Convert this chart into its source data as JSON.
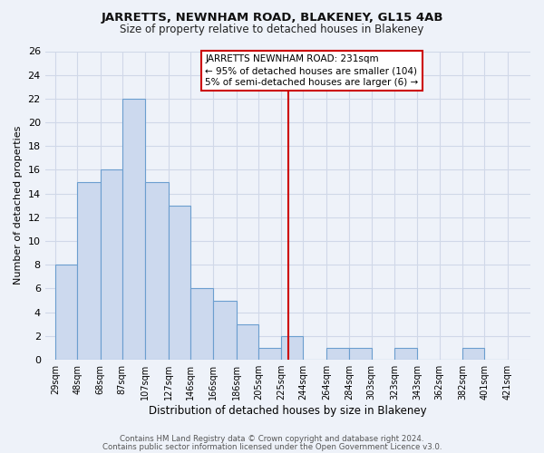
{
  "title": "JARRETTS, NEWNHAM ROAD, BLAKENEY, GL15 4AB",
  "subtitle": "Size of property relative to detached houses in Blakeney",
  "xlabel": "Distribution of detached houses by size in Blakeney",
  "ylabel": "Number of detached properties",
  "bar_left_edges": [
    29,
    48,
    68,
    87,
    107,
    127,
    146,
    166,
    186,
    205,
    225,
    244,
    264,
    284,
    303,
    323,
    343,
    362,
    382,
    401
  ],
  "bar_heights": [
    8,
    15,
    16,
    22,
    15,
    13,
    6,
    5,
    3,
    1,
    2,
    0,
    1,
    1,
    0,
    1,
    0,
    0,
    1,
    0
  ],
  "bar_widths": [
    19,
    20,
    19,
    20,
    20,
    19,
    20,
    20,
    19,
    20,
    19,
    20,
    20,
    19,
    20,
    20,
    19,
    20,
    19,
    20
  ],
  "tick_labels": [
    "29sqm",
    "48sqm",
    "68sqm",
    "87sqm",
    "107sqm",
    "127sqm",
    "146sqm",
    "166sqm",
    "186sqm",
    "205sqm",
    "225sqm",
    "244sqm",
    "264sqm",
    "284sqm",
    "303sqm",
    "323sqm",
    "343sqm",
    "362sqm",
    "382sqm",
    "401sqm",
    "421sqm"
  ],
  "tick_positions": [
    29,
    48,
    68,
    87,
    107,
    127,
    146,
    166,
    186,
    205,
    225,
    244,
    264,
    284,
    303,
    323,
    343,
    362,
    382,
    401,
    421
  ],
  "bar_color": "#ccd9ee",
  "bar_edge_color": "#6b9ecf",
  "vline_x": 231,
  "vline_color": "#cc0000",
  "annotation_title": "JARRETTS NEWNHAM ROAD: 231sqm",
  "annotation_line1": "← 95% of detached houses are smaller (104)",
  "annotation_line2": "5% of semi-detached houses are larger (6) →",
  "annotation_box_color": "#ffffff",
  "annotation_box_edge": "#cc0000",
  "ylim": [
    0,
    26
  ],
  "xlim": [
    20,
    441
  ],
  "footer1": "Contains HM Land Registry data © Crown copyright and database right 2024.",
  "footer2": "Contains public sector information licensed under the Open Government Licence v3.0.",
  "bg_color": "#eef2f9",
  "grid_color": "#d0d8e8",
  "title_fontsize": 9.5,
  "subtitle_fontsize": 8.5
}
